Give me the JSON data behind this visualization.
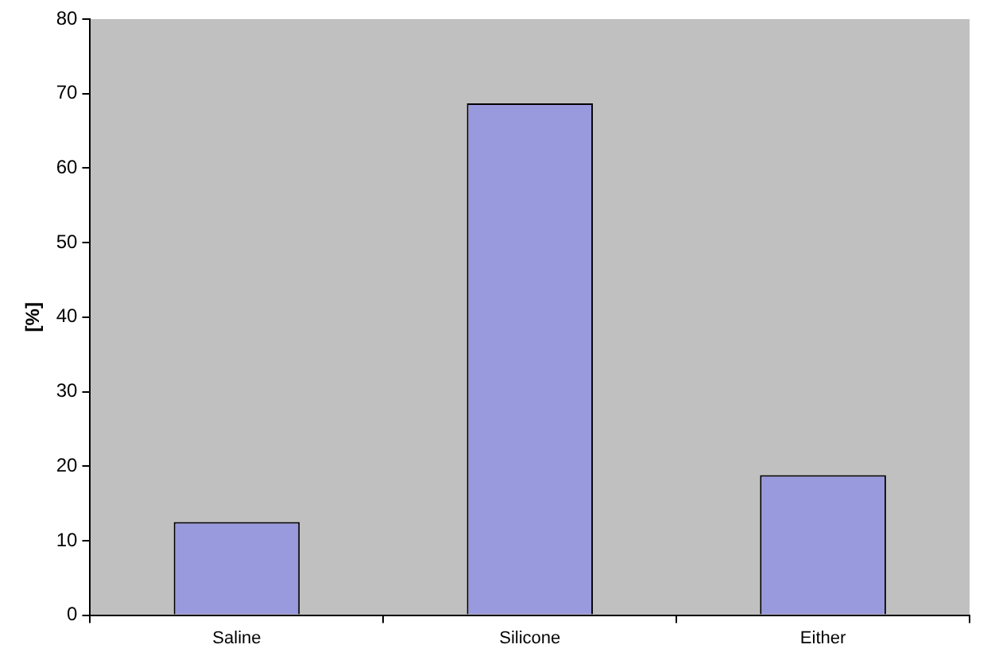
{
  "chart_data": {
    "type": "bar",
    "ylabel": "[%]",
    "categories": [
      "Saline",
      "Silicone",
      "Either"
    ],
    "values": [
      12.5,
      68.7,
      18.8
    ],
    "color": "#9999dd",
    "ylim": [
      0,
      80
    ],
    "yticks": [
      0,
      10,
      20,
      30,
      40,
      50,
      60,
      70,
      80
    ],
    "grid": false,
    "legend": false
  }
}
